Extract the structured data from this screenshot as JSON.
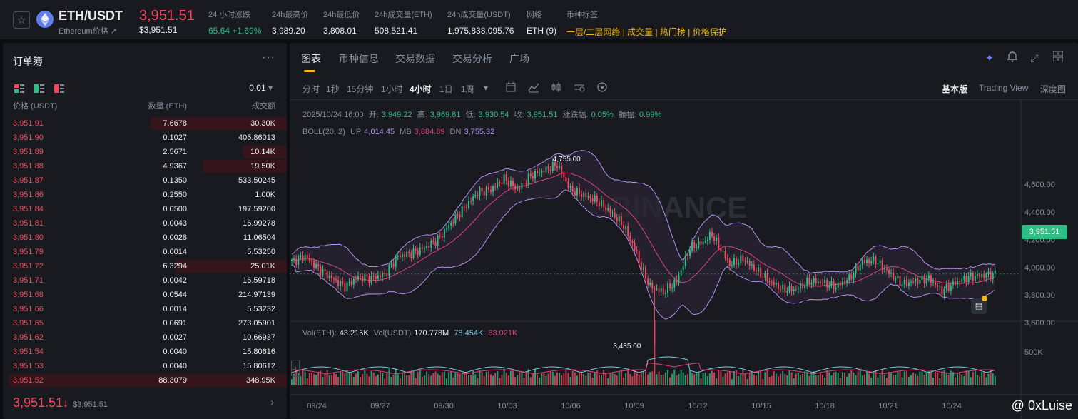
{
  "header": {
    "star_icon": "star-outline-icon",
    "pair": "ETH/USDT",
    "coin_name": "Ethereum价格",
    "coin_link_icon": "↗",
    "price": "3,951.51",
    "price_usd": "$3,951.51",
    "stats": [
      {
        "label": "24 小时涨跌",
        "value": "65.64 +1.69%",
        "color": "green"
      },
      {
        "label": "24h最高价",
        "value": "3,989.20",
        "color": "white"
      },
      {
        "label": "24h最低价",
        "value": "3,808.01",
        "color": "white"
      },
      {
        "label": "24h成交量(ETH)",
        "value": "508,521.41",
        "color": "white"
      },
      {
        "label": "24h成交量(USDT)",
        "value": "1,975,838,095.76",
        "color": "white"
      },
      {
        "label": "网络",
        "value": "ETH (9)",
        "color": "white"
      },
      {
        "label": "币种标签",
        "value": "一层/二层网络 | 成交量 | 热门榜 | 价格保护",
        "color": "yellow"
      }
    ]
  },
  "orderbook": {
    "title": "订单簿",
    "more": "···",
    "precision": "0.01",
    "headers": {
      "price": "价格 (USDT)",
      "amount": "数量 (ETH)",
      "total": "成交额"
    },
    "rows": [
      {
        "price": "3,951.91",
        "amount": "7.6678",
        "total": "30.30K",
        "depth": 0.49
      },
      {
        "price": "3,951.90",
        "amount": "0.1027",
        "total": "405.86013",
        "depth": 0.0
      },
      {
        "price": "3,951.89",
        "amount": "2.5671",
        "total": "10.14K",
        "depth": 0.16
      },
      {
        "price": "3,951.88",
        "amount": "4.9367",
        "total": "19.50K",
        "depth": 0.3
      },
      {
        "price": "3,951.87",
        "amount": "0.1350",
        "total": "533.50245",
        "depth": 0.0
      },
      {
        "price": "3,951.86",
        "amount": "0.2550",
        "total": "1.00K",
        "depth": 0.0
      },
      {
        "price": "3,951.84",
        "amount": "0.0500",
        "total": "197.59200",
        "depth": 0.0
      },
      {
        "price": "3,951.81",
        "amount": "0.0043",
        "total": "16.99278",
        "depth": 0.0
      },
      {
        "price": "3,951.80",
        "amount": "0.0028",
        "total": "11.06504",
        "depth": 0.0
      },
      {
        "price": "3,951.79",
        "amount": "0.0014",
        "total": "5.53250",
        "depth": 0.0
      },
      {
        "price": "3,951.72",
        "amount": "6.3294",
        "total": "25.01K",
        "depth": 0.4
      },
      {
        "price": "3,951.71",
        "amount": "0.0042",
        "total": "16.59718",
        "depth": 0.0
      },
      {
        "price": "3,951.68",
        "amount": "0.0544",
        "total": "214.97139",
        "depth": 0.0
      },
      {
        "price": "3,951.66",
        "amount": "0.0014",
        "total": "5.53232",
        "depth": 0.0
      },
      {
        "price": "3,951.65",
        "amount": "0.0691",
        "total": "273.05901",
        "depth": 0.0
      },
      {
        "price": "3,951.62",
        "amount": "0.0027",
        "total": "10.66937",
        "depth": 0.0
      },
      {
        "price": "3,951.54",
        "amount": "0.0040",
        "total": "15.80616",
        "depth": 0.0
      },
      {
        "price": "3,951.53",
        "amount": "0.0040",
        "total": "15.80612",
        "depth": 0.0
      },
      {
        "price": "3,951.52",
        "amount": "88.3079",
        "total": "348.95K",
        "depth": 1.0
      }
    ],
    "footer": {
      "price": "3,951.51",
      "arrow": "↓",
      "usd": "$3,951.51",
      "chevron": "›"
    }
  },
  "chart_panel": {
    "tabs": [
      "图表",
      "币种信息",
      "交易数据",
      "交易分析",
      "广场"
    ],
    "active_tab": "图表",
    "intervals": [
      "分时",
      "1秒",
      "15分钟",
      "1小时",
      "4小时",
      "1日",
      "1周"
    ],
    "active_interval": "4小时",
    "view_modes": [
      "基本版",
      "Trading View",
      "深度图"
    ],
    "active_view": "基本版",
    "toolbar_icons": [
      "dropdown-caret-icon",
      "candle-settings-icon",
      "indicator-icon",
      "bar-style-icon",
      "compare-icon",
      "settings-icon"
    ],
    "top_icons": [
      "sparkle-icon",
      "bell-icon",
      "expand-icon",
      "grid-icon"
    ],
    "ohlc_legend": {
      "date": "2025/10/24 16:00",
      "open_label": "开:",
      "open": "3,949.22",
      "high_label": "高:",
      "high": "3,969.81",
      "low_label": "低:",
      "low": "3,930.54",
      "close_label": "收:",
      "close": "3,951.51",
      "chg_label": "涨跌幅:",
      "chg": "0.05%",
      "amp_label": "振幅:",
      "amp": "0.99%"
    },
    "boll_legend": {
      "name": "BOLL(20, 2)",
      "up_label": "UP",
      "up": "4,014.45",
      "mb_label": "MB",
      "mb": "3,884.89",
      "dn_label": "DN",
      "dn": "3,755.32"
    },
    "vol_legend": {
      "vol_eth_label": "Vol(ETH):",
      "vol_eth": "43.215K",
      "vol_usdt_label": "Vol(USDT)",
      "vol_usdt": "170.778M",
      "ma1": "78.454K",
      "ma2": "83.021K"
    },
    "current_price_tag": "3,951.51",
    "watermark": "BINANCE",
    "credit": "@ 0xLuise",
    "colors": {
      "up": "#2ebd85",
      "down": "#f6465d",
      "boll_band": "#b392f0",
      "mb": "#e0407a",
      "accent": "#f0b90b"
    }
  },
  "chart_data": {
    "type": "candlestick",
    "y_ticks": [
      "4,600.00",
      "4,400.00",
      "4,200.00",
      "4,000.00",
      "3,800.00",
      "3,600.00"
    ],
    "y_tick_values": [
      4600,
      4400,
      4200,
      4000,
      3800,
      3600
    ],
    "ylim": [
      3300,
      4820
    ],
    "x_ticks": [
      "09/24",
      "09/27",
      "09/30",
      "10/03",
      "10/06",
      "10/09",
      "10/12",
      "10/15",
      "10/18",
      "10/21",
      "10/24"
    ],
    "annotations": [
      {
        "text": "4,755.00",
        "value": 4755
      },
      {
        "text": "3,435.00",
        "value": 3435
      }
    ],
    "volume_tick": "500K",
    "volume_tick_value": 500000,
    "anchors": [
      [
        0,
        4040
      ],
      [
        6,
        4080
      ],
      [
        12,
        3990
      ],
      [
        18,
        3920
      ],
      [
        24,
        3860
      ],
      [
        30,
        3930
      ],
      [
        36,
        3920
      ],
      [
        42,
        3950
      ],
      [
        48,
        4080
      ],
      [
        54,
        4100
      ],
      [
        60,
        4140
      ],
      [
        66,
        4200
      ],
      [
        72,
        4320
      ],
      [
        78,
        4430
      ],
      [
        84,
        4540
      ],
      [
        90,
        4560
      ],
      [
        96,
        4640
      ],
      [
        102,
        4560
      ],
      [
        108,
        4660
      ],
      [
        114,
        4700
      ],
      [
        120,
        4740
      ],
      [
        126,
        4560
      ],
      [
        132,
        4520
      ],
      [
        138,
        4480
      ],
      [
        144,
        4400
      ],
      [
        150,
        4300
      ],
      [
        156,
        4100
      ],
      [
        158,
        4000
      ],
      [
        162,
        3860
      ],
      [
        168,
        3820
      ],
      [
        174,
        3900
      ],
      [
        180,
        4140
      ],
      [
        186,
        4180
      ],
      [
        190,
        4240
      ],
      [
        192,
        4180
      ],
      [
        198,
        4020
      ],
      [
        204,
        4060
      ],
      [
        210,
        3980
      ],
      [
        216,
        3900
      ],
      [
        222,
        3840
      ],
      [
        228,
        3840
      ],
      [
        234,
        3900
      ],
      [
        240,
        3890
      ],
      [
        246,
        3860
      ],
      [
        252,
        3920
      ],
      [
        258,
        4040
      ],
      [
        264,
        4050
      ],
      [
        270,
        3960
      ],
      [
        276,
        3880
      ],
      [
        282,
        3900
      ],
      [
        288,
        3920
      ],
      [
        294,
        3830
      ],
      [
        300,
        3890
      ],
      [
        306,
        3930
      ],
      [
        312,
        3940
      ],
      [
        318,
        3950
      ]
    ]
  }
}
